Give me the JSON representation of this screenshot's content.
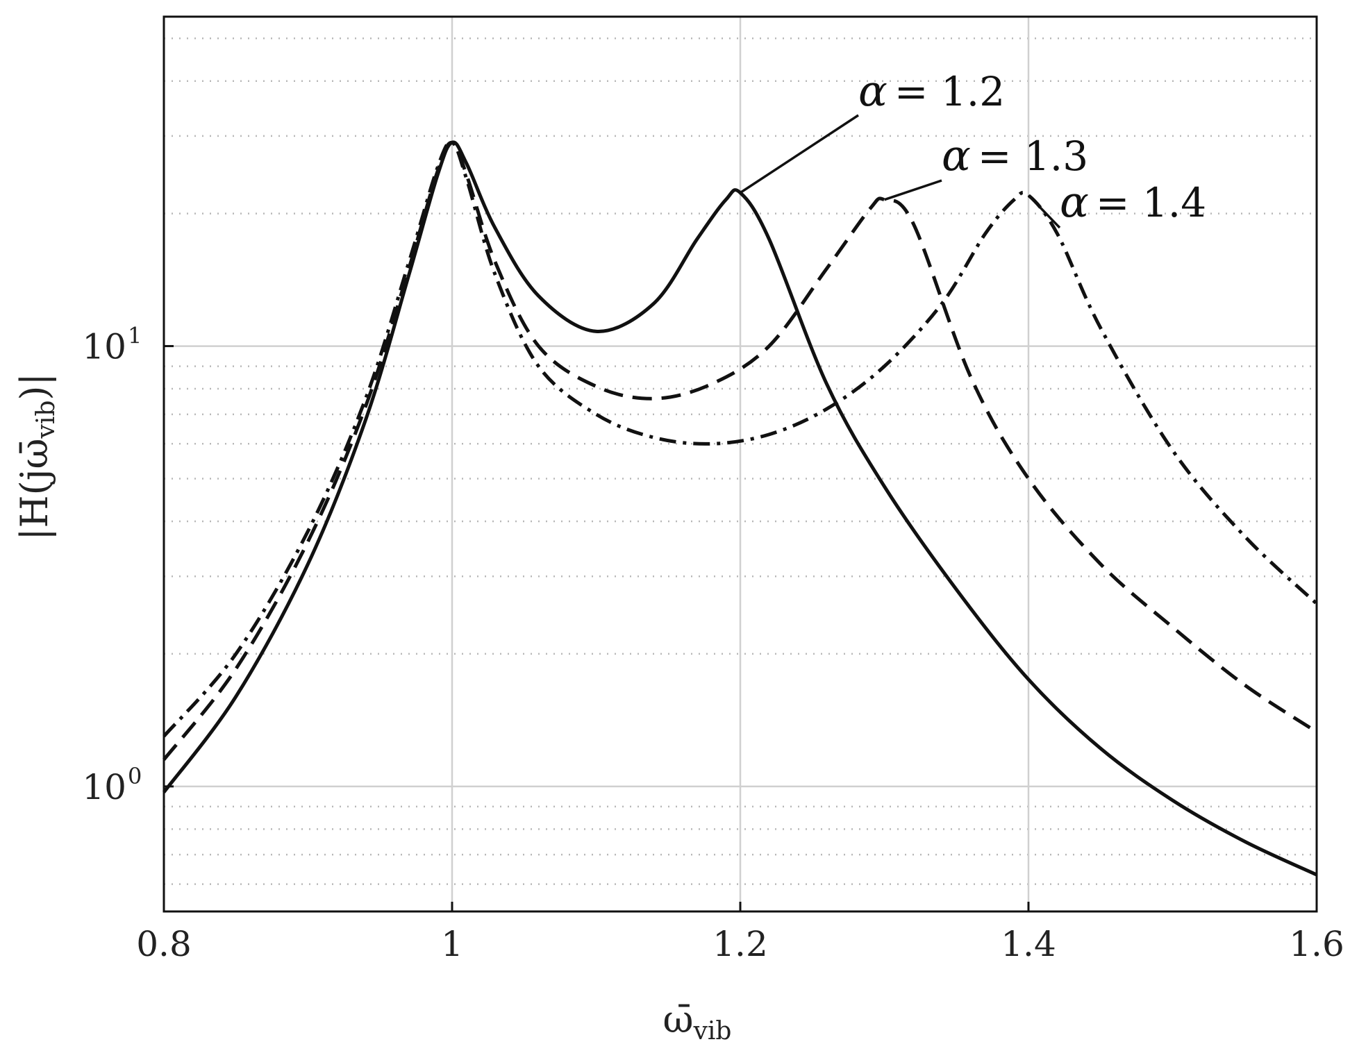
{
  "chart_data": {
    "type": "line",
    "title": "",
    "xlabel": "ω̄",
    "xlabel_sub": "vib",
    "ylabel_prefix": "|H(j",
    "ylabel_var": "ω̄",
    "ylabel_sub": "vib",
    "ylabel_suffix": ")|",
    "xlim": [
      0.8,
      1.6
    ],
    "ylim": [
      0.52,
      56
    ],
    "yscale": "log",
    "grid": true,
    "legend": "none",
    "x_ticks": [
      0.8,
      1.0,
      1.2,
      1.4,
      1.6
    ],
    "x_tick_labels": [
      "0.8",
      "1",
      "1.2",
      "1.4",
      "1.6"
    ],
    "y_ticks": [
      {
        "value": 1,
        "base": "10",
        "exp": "0"
      },
      {
        "value": 10,
        "base": "10",
        "exp": "1"
      }
    ],
    "series": [
      {
        "style": "solid",
        "x": [
          0.8,
          0.85,
          0.9,
          0.94,
          0.97,
          0.99,
          1.0,
          1.01,
          1.03,
          1.06,
          1.1,
          1.14,
          1.17,
          1.19,
          1.2,
          1.22,
          1.26,
          1.3,
          1.35,
          1.4,
          1.45,
          1.5,
          1.55,
          1.6
        ],
        "y": [
          0.97,
          1.6,
          3.2,
          6.8,
          14.5,
          24.5,
          29,
          26,
          18.5,
          13,
          10.8,
          12.5,
          17.5,
          21.5,
          22.3,
          17.5,
          8.2,
          4.8,
          2.8,
          1.75,
          1.22,
          0.93,
          0.75,
          0.63
        ]
      },
      {
        "style": "dashed",
        "x": [
          0.8,
          0.85,
          0.9,
          0.94,
          0.97,
          0.99,
          1.0,
          1.01,
          1.03,
          1.06,
          1.1,
          1.14,
          1.18,
          1.22,
          1.26,
          1.29,
          1.3,
          1.32,
          1.36,
          1.4,
          1.45,
          1.5,
          1.55,
          1.6
        ],
        "y": [
          1.15,
          1.85,
          3.6,
          7.3,
          15,
          25,
          29,
          24.5,
          15.5,
          10,
          8.1,
          7.6,
          8.2,
          10,
          15,
          20.5,
          21.5,
          19,
          8.5,
          5,
          3.2,
          2.3,
          1.7,
          1.33
        ]
      },
      {
        "style": "dashdot",
        "x": [
          0.8,
          0.85,
          0.9,
          0.94,
          0.97,
          0.99,
          1.0,
          1.01,
          1.03,
          1.06,
          1.1,
          1.14,
          1.18,
          1.22,
          1.26,
          1.3,
          1.34,
          1.37,
          1.39,
          1.4,
          1.42,
          1.45,
          1.5,
          1.55,
          1.6
        ],
        "y": [
          1.3,
          2.0,
          3.8,
          7.6,
          15.5,
          25.5,
          29,
          24,
          14.5,
          9,
          7,
          6.2,
          6.0,
          6.3,
          7.2,
          9,
          12.5,
          18,
          21.5,
          22,
          18,
          11,
          5.8,
          3.7,
          2.6
        ]
      }
    ],
    "annotations": [
      {
        "alpha": "α",
        "text": "= 1.2",
        "point_x": 1.2,
        "point_y": 22.3
      },
      {
        "alpha": "α",
        "text": "= 1.3",
        "point_x": 1.3,
        "point_y": 21.5
      },
      {
        "alpha": "α",
        "text": "= 1.4",
        "point_x": 1.4,
        "point_y": 22
      }
    ]
  }
}
